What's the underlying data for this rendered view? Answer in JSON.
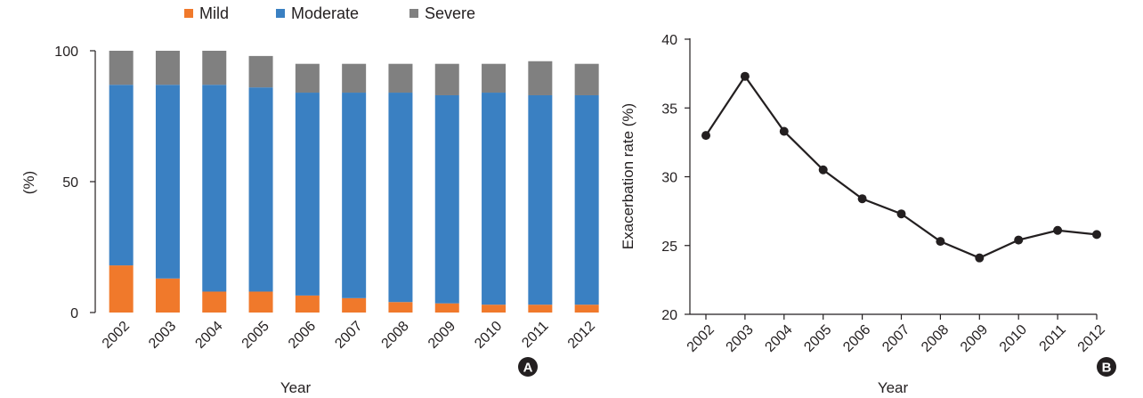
{
  "chart_data": [
    {
      "type": "bar",
      "stacked": true,
      "title": "",
      "xlabel": "Year",
      "ylabel": "(%)",
      "ylim": [
        0,
        100
      ],
      "yticks": [
        "0",
        "50",
        "100"
      ],
      "categories": [
        "2002",
        "2003",
        "2004",
        "2005",
        "2006",
        "2007",
        "2008",
        "2009",
        "2010",
        "2011",
        "2012"
      ],
      "legend_position": "top",
      "series": [
        {
          "name": "Mild",
          "color": "#f0792b",
          "values": [
            18,
            13,
            8,
            8,
            6.5,
            5.5,
            4,
            3.5,
            3,
            3,
            3
          ]
        },
        {
          "name": "Moderate",
          "color": "#3a80c2",
          "values": [
            69,
            74,
            79,
            78,
            77.5,
            78.5,
            80,
            79.5,
            81,
            80,
            80
          ]
        },
        {
          "name": "Severe",
          "color": "#808080",
          "values": [
            13,
            13,
            13,
            12,
            11,
            11,
            11,
            12,
            11,
            13,
            12
          ]
        }
      ],
      "panel_label": "A"
    },
    {
      "type": "line",
      "title": "",
      "xlabel": "Year",
      "ylabel": "Exacerbation rate (%)",
      "ylim": [
        20,
        40
      ],
      "yticks": [
        "20",
        "25",
        "30",
        "35",
        "40"
      ],
      "x": [
        "2002",
        "2003",
        "2004",
        "2005",
        "2006",
        "2007",
        "2008",
        "2009",
        "2010",
        "2011",
        "2012"
      ],
      "series": [
        {
          "color": "#231f20",
          "values": [
            33.0,
            37.3,
            33.3,
            30.5,
            28.4,
            27.3,
            25.3,
            24.1,
            25.4,
            26.1,
            25.8
          ]
        }
      ],
      "panel_label": "B"
    }
  ]
}
